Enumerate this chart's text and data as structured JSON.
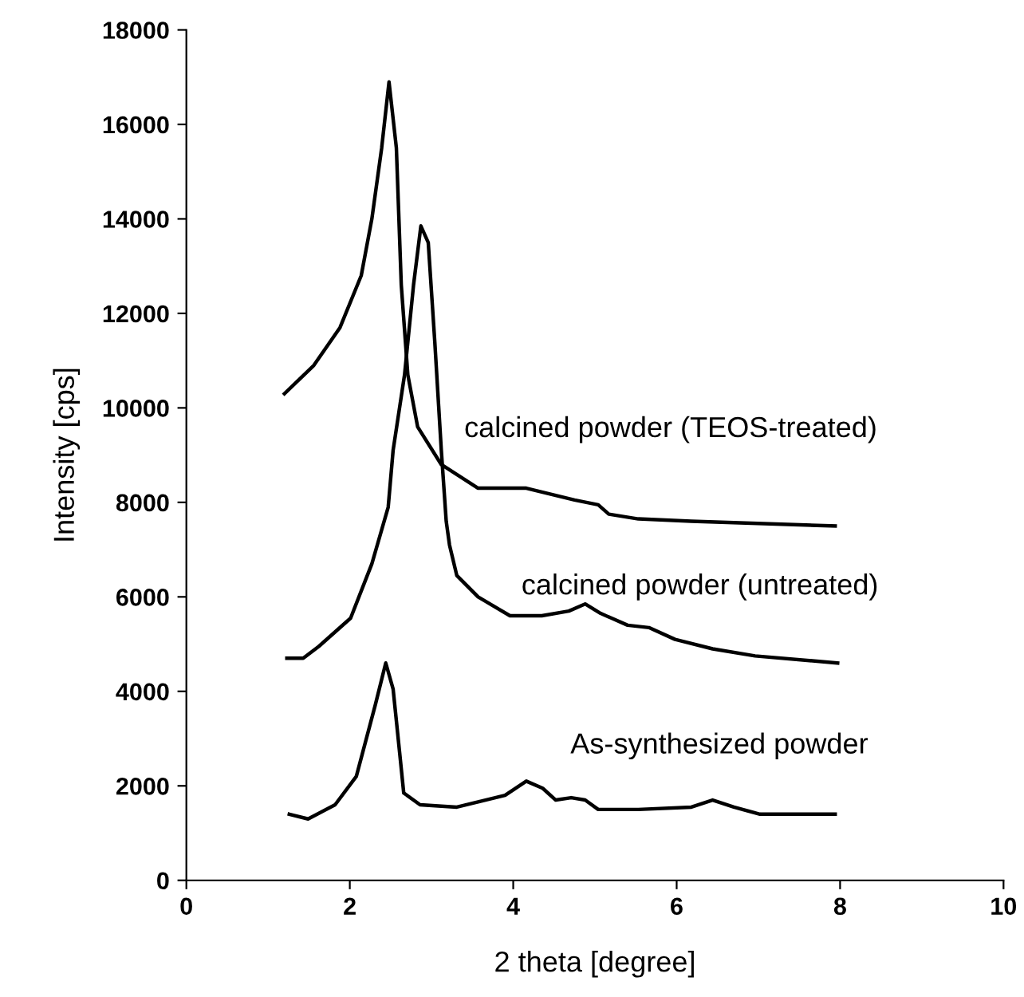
{
  "chart_data": {
    "type": "line",
    "xlabel": "2 theta [degree]",
    "ylabel": "Intensity [cps]",
    "xlim": [
      0,
      10
    ],
    "xticks": [
      0,
      2,
      4,
      6,
      8,
      10
    ],
    "ylim": [
      0,
      18000
    ],
    "yticks": [
      0,
      2000,
      4000,
      6000,
      8000,
      10000,
      12000,
      14000,
      16000,
      18000
    ],
    "grid": false,
    "legend": false,
    "marker": "none",
    "line_style": "solid",
    "series": [
      {
        "name": "calcined powder (TEOS-treated)",
        "color": "#000000",
        "x": [
          1.2,
          1.56,
          1.88,
          2.14,
          2.27,
          2.39,
          2.48,
          2.57,
          2.63,
          2.71,
          2.83,
          3.12,
          3.57,
          4.16,
          4.75,
          5.04,
          5.17,
          5.53,
          6.18,
          7.94
        ],
        "values": [
          10300,
          10900,
          11700,
          12800,
          14000,
          15500,
          16900,
          15500,
          12600,
          10700,
          9600,
          8800,
          8300,
          8300,
          8050,
          7950,
          7750,
          7650,
          7600,
          7500
        ]
      },
      {
        "name": "calcined powder (untreated)",
        "color": "#000000",
        "x": [
          1.23,
          1.43,
          1.62,
          2.01,
          2.27,
          2.47,
          2.53,
          2.67,
          2.78,
          2.87,
          2.96,
          3.04,
          3.12,
          3.18,
          3.22,
          3.31,
          3.57,
          3.96,
          4.35,
          4.68,
          4.88,
          5.07,
          5.4,
          5.66,
          5.98,
          6.44,
          6.96,
          7.97
        ],
        "values": [
          4700,
          4700,
          4950,
          5550,
          6700,
          7900,
          9100,
          10700,
          12600,
          13850,
          13500,
          11400,
          9100,
          7600,
          7100,
          6450,
          6000,
          5600,
          5600,
          5700,
          5850,
          5650,
          5400,
          5350,
          5100,
          4900,
          4750,
          4600
        ]
      },
      {
        "name": "As-synthesized powder",
        "color": "#000000",
        "x": [
          1.26,
          1.49,
          1.82,
          2.08,
          2.31,
          2.44,
          2.53,
          2.61,
          2.66,
          2.86,
          3.31,
          3.9,
          4.16,
          4.36,
          4.52,
          4.71,
          4.88,
          5.04,
          5.53,
          6.18,
          6.44,
          6.7,
          7.02,
          7.94
        ],
        "values": [
          1400,
          1300,
          1600,
          2200,
          3700,
          4600,
          4050,
          2700,
          1850,
          1600,
          1550,
          1800,
          2100,
          1950,
          1700,
          1750,
          1700,
          1500,
          1500,
          1550,
          1700,
          1550,
          1400,
          1400
        ]
      }
    ]
  }
}
